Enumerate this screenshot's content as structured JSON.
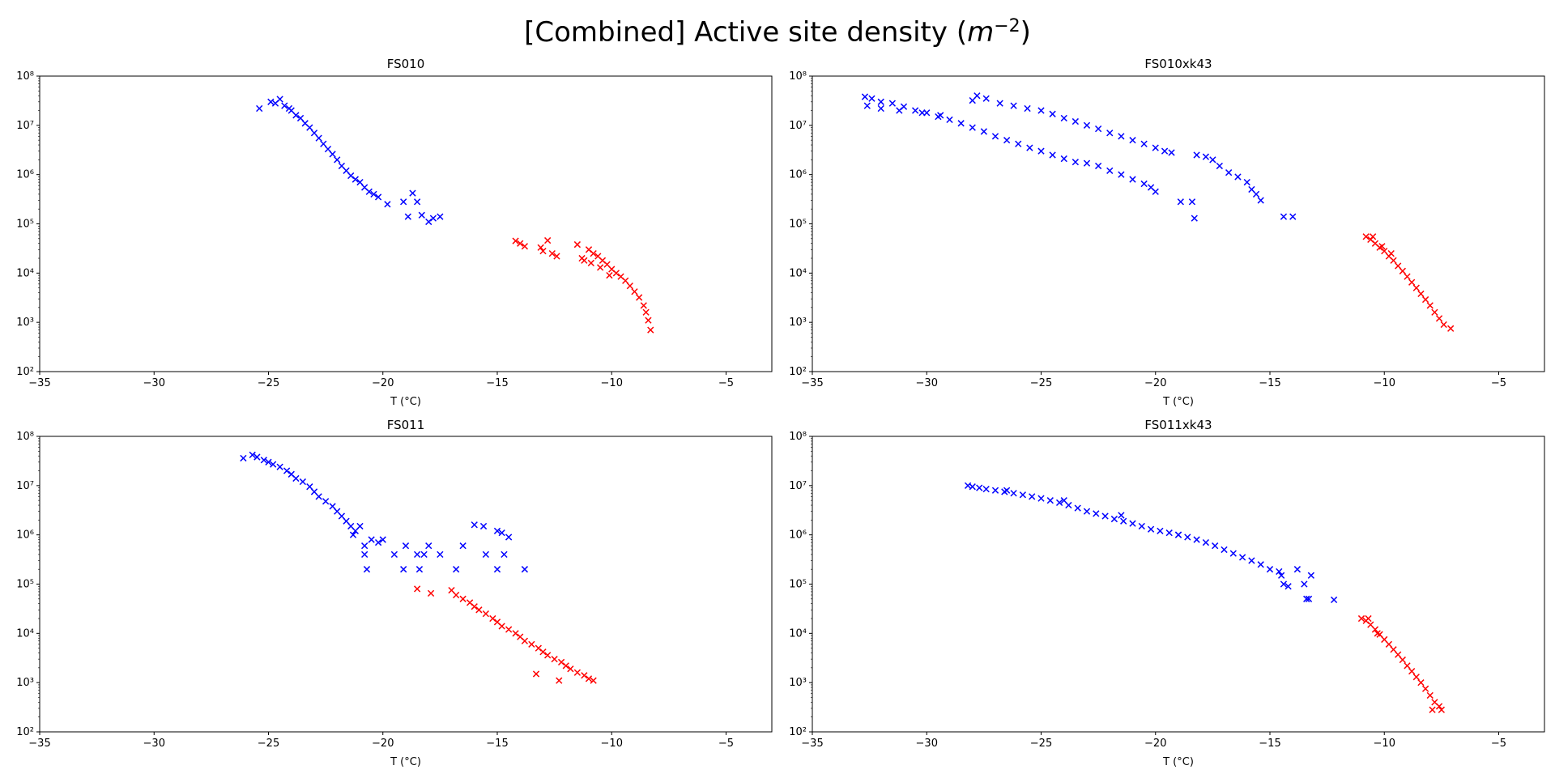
{
  "figure": {
    "title_main": "[Combined] Active site density (",
    "title_var": "m",
    "title_exp": "−2",
    "title_close": ")"
  },
  "chart_data": [
    {
      "type": "scatter",
      "title": "FS010",
      "xlabel": "T (°C)",
      "yscale": "log",
      "xlim": [
        -35,
        -3
      ],
      "ylim_exponents": [
        2,
        8
      ],
      "xticks": [
        -35,
        -30,
        -25,
        -20,
        -15,
        -10,
        -5
      ],
      "series": [
        {
          "name": "blue",
          "color": "#0000ff",
          "marker": "x",
          "x": [
            -25.4,
            -24.9,
            -24.7,
            -24.5,
            -24.3,
            -24.1,
            -24.0,
            -23.8,
            -23.6,
            -23.4,
            -23.2,
            -23.0,
            -22.8,
            -22.6,
            -22.4,
            -22.2,
            -22.0,
            -21.8,
            -21.6,
            -21.4,
            -21.2,
            -21.0,
            -20.8,
            -20.6,
            -20.4,
            -20.2,
            -19.8,
            -19.1,
            -18.7,
            -18.5,
            -18.3,
            -18.0,
            -17.8,
            -17.5,
            -18.9
          ],
          "y": [
            22000000,
            30000000,
            28000000,
            34000000,
            25000000,
            22000000,
            20000000,
            16000000,
            14000000,
            11000000,
            9000000,
            7000000,
            5500000,
            4200000,
            3300000,
            2600000,
            2000000,
            1500000,
            1200000,
            950000,
            800000,
            700000,
            550000,
            450000,
            400000,
            350000,
            250000,
            280000,
            420000,
            280000,
            150000,
            110000,
            130000,
            140000,
            140000
          ]
        },
        {
          "name": "red",
          "color": "#ff0000",
          "marker": "x",
          "x": [
            -14.2,
            -14.0,
            -13.8,
            -13.1,
            -13.0,
            -12.8,
            -12.6,
            -12.4,
            -11.5,
            -11.3,
            -11.0,
            -10.8,
            -10.6,
            -10.4,
            -10.2,
            -10.0,
            -9.8,
            -9.6,
            -9.4,
            -9.2,
            -9.0,
            -8.8,
            -8.6,
            -8.5,
            -8.4,
            -8.3,
            -11.2,
            -10.9,
            -10.5,
            -10.1
          ],
          "y": [
            45000,
            40000,
            35000,
            33000,
            28000,
            46000,
            25000,
            22000,
            38000,
            20000,
            30000,
            25000,
            22000,
            18000,
            15000,
            12000,
            10000,
            8500,
            7000,
            5500,
            4200,
            3200,
            2200,
            1600,
            1100,
            700,
            18000,
            16000,
            13000,
            9000
          ]
        }
      ]
    },
    {
      "type": "scatter",
      "title": "FS010xk43",
      "xlabel": "T (°C)",
      "yscale": "log",
      "xlim": [
        -35,
        -3
      ],
      "ylim_exponents": [
        2,
        8
      ],
      "xticks": [
        -35,
        -30,
        -25,
        -20,
        -15,
        -10,
        -5
      ],
      "series": [
        {
          "name": "blue",
          "color": "#0000ff",
          "marker": "x",
          "x": [
            -32.7,
            -32.4,
            -32.0,
            -31.5,
            -31.0,
            -30.5,
            -30.0,
            -29.5,
            -29.0,
            -28.5,
            -28.0,
            -27.5,
            -27.0,
            -26.5,
            -26.0,
            -25.5,
            -25.0,
            -24.5,
            -24.0,
            -23.5,
            -23.0,
            -22.5,
            -22.0,
            -21.5,
            -21.0,
            -20.5,
            -20.2,
            -20.0,
            -32.6,
            -32.0,
            -31.2,
            -30.2,
            -29.4,
            -28.0,
            -27.8,
            -27.4,
            -26.8,
            -26.2,
            -25.6,
            -25.0,
            -24.5,
            -24.0,
            -23.5,
            -23.0,
            -22.5,
            -22.0,
            -21.5,
            -21.0,
            -20.5,
            -20.0,
            -19.6,
            -19.3,
            -18.2,
            -17.8,
            -17.5,
            -17.2,
            -16.8,
            -16.4,
            -16.0,
            -15.8,
            -15.6,
            -15.4,
            -18.9,
            -18.4,
            -18.3,
            -14.4,
            -14.0
          ],
          "y": [
            38000000,
            35000000,
            30000000,
            28000000,
            24000000,
            20000000,
            18000000,
            15000000,
            13000000,
            11000000,
            9000000,
            7500000,
            6000000,
            5000000,
            4200000,
            3500000,
            3000000,
            2500000,
            2100000,
            1800000,
            1700000,
            1500000,
            1200000,
            1000000,
            800000,
            650000,
            550000,
            450000,
            25000000,
            22000000,
            20000000,
            18000000,
            16000000,
            32000000,
            40000000,
            35000000,
            28000000,
            25000000,
            22000000,
            20000000,
            17000000,
            14000000,
            12000000,
            10000000,
            8500000,
            7000000,
            6000000,
            5000000,
            4200000,
            3500000,
            3000000,
            2800000,
            2500000,
            2300000,
            2000000,
            1500000,
            1100000,
            900000,
            700000,
            500000,
            400000,
            300000,
            280000,
            280000,
            130000,
            140000,
            140000
          ]
        },
        {
          "name": "red",
          "color": "#ff0000",
          "marker": "x",
          "x": [
            -10.8,
            -10.6,
            -10.4,
            -10.2,
            -10.0,
            -9.8,
            -9.6,
            -9.4,
            -9.2,
            -9.0,
            -8.8,
            -8.6,
            -8.4,
            -8.2,
            -8.0,
            -7.8,
            -7.6,
            -7.4,
            -7.1,
            -10.5,
            -10.1,
            -9.7
          ],
          "y": [
            55000,
            48000,
            40000,
            33000,
            28000,
            22000,
            18000,
            14000,
            11000,
            8500,
            6500,
            5000,
            3800,
            2900,
            2200,
            1600,
            1200,
            900,
            750,
            55000,
            35000,
            25000
          ]
        }
      ]
    },
    {
      "type": "scatter",
      "title": "FS011",
      "xlabel": "T (°C)",
      "yscale": "log",
      "xlim": [
        -35,
        -3
      ],
      "ylim_exponents": [
        2,
        8
      ],
      "xticks": [
        -35,
        -30,
        -25,
        -20,
        -15,
        -10,
        -5
      ],
      "series": [
        {
          "name": "blue",
          "color": "#0000ff",
          "marker": "x",
          "x": [
            -26.1,
            -25.7,
            -25.5,
            -25.2,
            -25.0,
            -24.8,
            -24.5,
            -24.2,
            -24.0,
            -23.8,
            -23.5,
            -23.2,
            -23.0,
            -22.8,
            -22.5,
            -22.2,
            -22.0,
            -21.8,
            -21.6,
            -21.4,
            -21.2,
            -20.8,
            -20.7,
            -20.5,
            -20.2,
            -20.0,
            -19.0,
            -18.5,
            -18.0,
            -17.5,
            -16.5,
            -16.0,
            -15.6,
            -15.0,
            -14.8,
            -14.5,
            -14.7,
            -13.8,
            -21.3,
            -21.0,
            -20.8,
            -19.5,
            -19.1,
            -18.4,
            -18.2,
            -16.8,
            -15.5,
            -15.0
          ],
          "y": [
            36000000,
            42000000,
            38000000,
            33000000,
            30000000,
            27000000,
            24000000,
            20000000,
            17000000,
            14000000,
            12000000,
            9500000,
            7500000,
            6000000,
            4800000,
            3800000,
            3000000,
            2400000,
            1900000,
            1500000,
            1200000,
            600000,
            200000,
            800000,
            700000,
            800000,
            600000,
            400000,
            600000,
            400000,
            600000,
            1600000,
            1500000,
            1200000,
            1100000,
            900000,
            400000,
            200000,
            1000000,
            1500000,
            400000,
            400000,
            200000,
            200000,
            400000,
            200000,
            400000,
            200000
          ]
        },
        {
          "name": "red",
          "color": "#ff0000",
          "marker": "x",
          "x": [
            -18.5,
            -17.9,
            -17.0,
            -16.8,
            -16.5,
            -16.2,
            -16.0,
            -15.8,
            -15.5,
            -15.2,
            -15.0,
            -14.8,
            -14.5,
            -14.2,
            -14.0,
            -13.8,
            -13.5,
            -13.2,
            -13.0,
            -12.8,
            -12.5,
            -12.2,
            -12.0,
            -11.8,
            -11.5,
            -11.2,
            -11.0,
            -10.8,
            -12.3,
            -13.3
          ],
          "y": [
            80000,
            65000,
            75000,
            60000,
            50000,
            42000,
            35000,
            30000,
            25000,
            20000,
            17000,
            14000,
            12000,
            10000,
            8500,
            7000,
            6000,
            5000,
            4200,
            3600,
            3000,
            2600,
            2200,
            1900,
            1600,
            1400,
            1200,
            1100,
            1100,
            1500
          ]
        }
      ]
    },
    {
      "type": "scatter",
      "title": "FS011xk43",
      "xlabel": "T (°C)",
      "yscale": "log",
      "xlim": [
        -35,
        -3
      ],
      "ylim_exponents": [
        2,
        8
      ],
      "xticks": [
        -35,
        -30,
        -25,
        -20,
        -15,
        -10,
        -5
      ],
      "series": [
        {
          "name": "blue",
          "color": "#0000ff",
          "marker": "x",
          "x": [
            -28.2,
            -28.0,
            -27.7,
            -27.4,
            -27.0,
            -26.6,
            -26.2,
            -25.8,
            -25.4,
            -25.0,
            -24.6,
            -24.2,
            -23.8,
            -23.4,
            -23.0,
            -22.6,
            -22.2,
            -21.8,
            -21.4,
            -21.0,
            -20.6,
            -20.2,
            -19.8,
            -19.4,
            -19.0,
            -18.6,
            -18.2,
            -17.8,
            -17.4,
            -17.0,
            -16.6,
            -16.2,
            -15.8,
            -15.4,
            -15.0,
            -14.6,
            -14.4,
            -14.2,
            -13.8,
            -13.5,
            -13.3,
            -13.2,
            -12.2,
            -14.5,
            -13.4,
            -26.5,
            -24.0,
            -21.5,
            -19.0
          ],
          "y": [
            10000000,
            9500000,
            9000000,
            8500000,
            8000000,
            7500000,
            7000000,
            6500000,
            6000000,
            5500000,
            5000000,
            4500000,
            4000000,
            3500000,
            3000000,
            2700000,
            2400000,
            2100000,
            1900000,
            1700000,
            1500000,
            1300000,
            1200000,
            1100000,
            1000000,
            900000,
            800000,
            700000,
            600000,
            500000,
            420000,
            350000,
            300000,
            250000,
            200000,
            180000,
            100000,
            90000,
            200000,
            100000,
            50000,
            150000,
            48000,
            150000,
            50000,
            8000000,
            5000000,
            2500000,
            1000000
          ]
        },
        {
          "name": "red",
          "color": "#ff0000",
          "marker": "x",
          "x": [
            -11.0,
            -10.8,
            -10.6,
            -10.4,
            -10.2,
            -10.0,
            -9.8,
            -9.6,
            -9.4,
            -9.2,
            -9.0,
            -8.8,
            -8.6,
            -8.4,
            -8.2,
            -8.0,
            -7.8,
            -7.6,
            -7.5,
            -10.7,
            -10.3,
            -7.9
          ],
          "y": [
            20000,
            18000,
            15000,
            12000,
            9500,
            7500,
            6000,
            4700,
            3700,
            2900,
            2200,
            1700,
            1300,
            1000,
            750,
            550,
            400,
            330,
            280,
            20000,
            10000,
            280
          ]
        }
      ]
    }
  ]
}
